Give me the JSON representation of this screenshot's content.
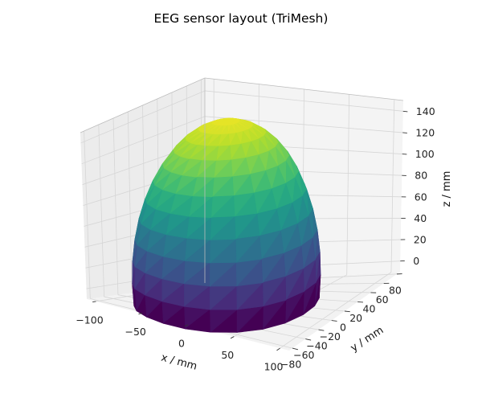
{
  "chart_data": {
    "type": "surface3d",
    "title": "EEG sensor layout (TriMesh)",
    "xlabel": "x / mm",
    "ylabel": "y / mm",
    "zlabel": "z / mm",
    "x_ticks": [
      -100,
      -50,
      0,
      50,
      100
    ],
    "x_tick_labels": [
      "−100",
      "−50",
      "0",
      "50",
      "100"
    ],
    "y_ticks": [
      -80,
      -60,
      -40,
      -20,
      0,
      20,
      40,
      60,
      80
    ],
    "y_tick_labels": [
      "−80",
      "−60",
      "−40",
      "−20",
      "0",
      "20",
      "40",
      "60",
      "80"
    ],
    "z_ticks": [
      0,
      20,
      40,
      60,
      80,
      100,
      120,
      140
    ],
    "z_tick_labels": [
      "0",
      "20",
      "40",
      "60",
      "80",
      "100",
      "120",
      "140"
    ],
    "xlim": [
      -110,
      110
    ],
    "ylim": [
      -85,
      85
    ],
    "zlim": [
      -10,
      150
    ],
    "surface": {
      "shape": "hemispherical head cap",
      "center": [
        -20,
        0,
        5
      ],
      "radii": [
        85,
        80,
        140
      ],
      "colormap": "viridis",
      "color_by": "z",
      "zmin": -10,
      "zmax": 150
    },
    "grid": true,
    "pane_color": "#f2f2f2"
  }
}
